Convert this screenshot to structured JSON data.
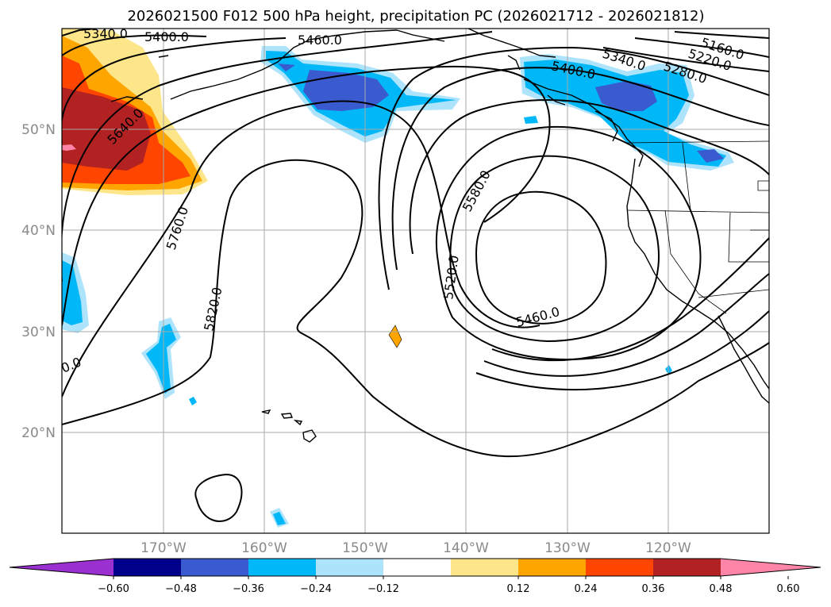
{
  "title": "2026021500 F012 500 hPa height, precipitation PC (2026021712 - 2026021812)",
  "map": {
    "latitude_labels": [
      "50°N",
      "40°N",
      "30°N",
      "20°N"
    ],
    "longitude_labels": [
      "170°W",
      "160°W",
      "150°W",
      "140°W",
      "130°W",
      "120°W"
    ],
    "grid": true
  },
  "height_contour_labels": [
    "5340.0",
    "5400.0",
    "5460.0",
    "5160.0",
    "5220.0",
    "5280.0",
    "5340.0",
    "5400.0",
    "5640.0",
    "5760.0",
    "5820.0",
    "5580.0",
    "5520.0",
    "5460.0",
    "0.0"
  ],
  "colorbar": {
    "tick_labels": [
      "−0.60",
      "−0.48",
      "−0.36",
      "−0.24",
      "−0.12",
      "0.12",
      "0.24",
      "0.36",
      "0.48",
      "0.60"
    ],
    "colors": [
      "#9b30d0",
      "#00008b",
      "#3a5bd0",
      "#00b8f8",
      "#ade3fb",
      "#ffffff",
      "#fde68a",
      "#ffa500",
      "#ff4500",
      "#b22222",
      "#ff85a8"
    ]
  },
  "precip_colors": {
    "light_neg": "#ade3fb",
    "mid_neg": "#00b8f8",
    "deep_neg": "#3a5bd0",
    "light_pos": "#fde68a",
    "mid_pos": "#ffa500",
    "strong_pos": "#ff4500",
    "deep_pos": "#b22222",
    "peak_pos": "#ff85a8"
  }
}
